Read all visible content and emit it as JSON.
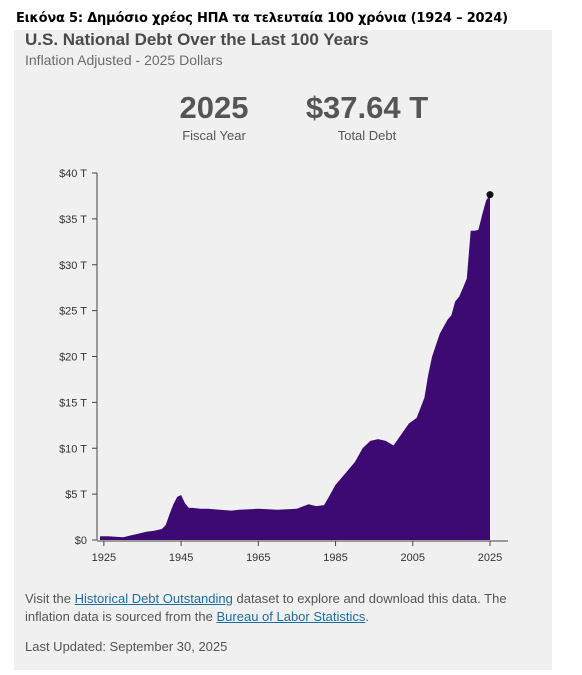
{
  "caption": "Εικόνα 5: Δημόσιο χρέος ΗΠΑ τα τελευταία 100 χρόνια (1924 – 2024)",
  "card": {
    "title": "U.S. National Debt Over the Last 100 Years",
    "subtitle": "Inflation Adjusted - 2025 Dollars",
    "stats": [
      {
        "value": "2025",
        "label": "Fiscal Year"
      },
      {
        "value": "$37.64 T",
        "label": "Total Debt"
      }
    ],
    "note": {
      "prefix": "Visit the ",
      "link1": "Historical Debt Outstanding",
      "middle": " dataset to explore and download this data. The inflation data is sourced from the ",
      "link2": "Bureau of Labor Statistics",
      "suffix": "."
    },
    "updated": "Last Updated: September 30, 2025"
  },
  "colors": {
    "area": "#3d0a73",
    "axis": "#444444"
  },
  "chart_data": {
    "type": "area",
    "title": "U.S. National Debt Over the Last 100 Years",
    "subtitle": "Inflation Adjusted - 2025 Dollars",
    "xlim": [
      1924,
      2025
    ],
    "ylim": [
      0,
      40
    ],
    "x_ticks": [
      1925,
      1945,
      1965,
      1985,
      2005,
      2025
    ],
    "y_ticks": [
      {
        "v": 0,
        "label": "$0"
      },
      {
        "v": 5,
        "label": "$5 T"
      },
      {
        "v": 10,
        "label": "$10 T"
      },
      {
        "v": 15,
        "label": "$15 T"
      },
      {
        "v": 20,
        "label": "$20 T"
      },
      {
        "v": 25,
        "label": "$25 T"
      },
      {
        "v": 30,
        "label": "$30 T"
      },
      {
        "v": 35,
        "label": "$35 T"
      },
      {
        "v": 40,
        "label": "$40 T"
      }
    ],
    "grid": false,
    "series": [
      {
        "x": [
          1924,
          1926,
          1930,
          1932,
          1934,
          1936,
          1938,
          1940,
          1941,
          1942,
          1943,
          1944,
          1945,
          1946,
          1947,
          1948,
          1950,
          1952,
          1955,
          1958,
          1960,
          1965,
          1970,
          1975,
          1978,
          1980,
          1982,
          1983,
          1985,
          1987,
          1990,
          1992,
          1994,
          1996,
          1998,
          2000,
          2002,
          2004,
          2006,
          2008,
          2009,
          2010,
          2012,
          2014,
          2015,
          2016,
          2017,
          2018,
          2019,
          2020,
          2021,
          2022,
          2023,
          2024,
          2025
        ],
        "y": [
          0.4,
          0.4,
          0.3,
          0.5,
          0.7,
          0.9,
          1.0,
          1.2,
          1.6,
          2.8,
          3.9,
          4.7,
          4.9,
          4.0,
          3.5,
          3.5,
          3.4,
          3.4,
          3.3,
          3.2,
          3.3,
          3.4,
          3.3,
          3.4,
          3.9,
          3.7,
          3.8,
          4.5,
          6.0,
          7.0,
          8.5,
          10.0,
          10.8,
          11.0,
          10.8,
          10.3,
          11.5,
          12.7,
          13.3,
          15.5,
          18.0,
          20.0,
          22.5,
          24.0,
          24.5,
          26.0,
          26.5,
          27.5,
          28.5,
          33.7,
          33.7,
          33.8,
          35.5,
          37.0,
          37.64
        ]
      }
    ],
    "highlight": {
      "x": 2025,
      "y": 37.64
    }
  }
}
